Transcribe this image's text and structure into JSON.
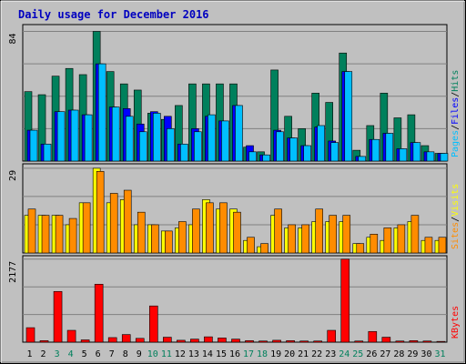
{
  "chart_data": [
    {
      "type": "bar",
      "title": "Daily usage for December 2016",
      "ylabel_parts": [
        "Pages",
        "/",
        "Files",
        "/",
        "Hits"
      ],
      "ymax_label": "84",
      "categories": [
        "1",
        "2",
        "3",
        "4",
        "5",
        "6",
        "7",
        "8",
        "9",
        "10",
        "11",
        "12",
        "13",
        "14",
        "15",
        "16",
        "17",
        "18",
        "19",
        "20",
        "21",
        "22",
        "23",
        "24",
        "25",
        "26",
        "27",
        "28",
        "29",
        "30",
        "31"
      ],
      "series": [
        {
          "name": "Hits",
          "color": "#00805c",
          "values": [
            45,
            43,
            55,
            60,
            56,
            84,
            58,
            50,
            46,
            31,
            27,
            36,
            50,
            50,
            50,
            50,
            9,
            6,
            59,
            29,
            21,
            44,
            38,
            70,
            7,
            23,
            44,
            28,
            30,
            10,
            5
          ]
        },
        {
          "name": "Files",
          "color": "#0000ff",
          "values": [
            20,
            11,
            32,
            33,
            30,
            63,
            35,
            34,
            24,
            32,
            29,
            11,
            21,
            29,
            26,
            36,
            10,
            4,
            20,
            15,
            10,
            22,
            13,
            58,
            3,
            14,
            18,
            8,
            12,
            6,
            5
          ]
        },
        {
          "name": "Pages",
          "color": "#00bfff",
          "values": [
            20,
            11,
            32,
            33,
            30,
            63,
            35,
            29,
            19,
            31,
            21,
            11,
            19,
            30,
            26,
            36,
            6,
            4,
            19,
            15,
            10,
            23,
            12,
            58,
            3,
            14,
            18,
            8,
            12,
            6,
            5
          ]
        }
      ]
    },
    {
      "type": "bar",
      "ylabel_parts": [
        "Sites",
        "/",
        "Visits"
      ],
      "ymax_label": "29",
      "categories": [
        "1",
        "2",
        "3",
        "4",
        "5",
        "6",
        "7",
        "8",
        "9",
        "10",
        "11",
        "12",
        "13",
        "14",
        "15",
        "16",
        "17",
        "18",
        "19",
        "20",
        "21",
        "22",
        "23",
        "24",
        "25",
        "26",
        "27",
        "28",
        "29",
        "30",
        "31"
      ],
      "series": [
        {
          "name": "Visits",
          "color": "#ffff00",
          "values": [
            12,
            12,
            12,
            9,
            16,
            27,
            16,
            17,
            9,
            9,
            7,
            8,
            9,
            17,
            14,
            14,
            4,
            2,
            12,
            8,
            8,
            10,
            10,
            10,
            3,
            5,
            4,
            8,
            10,
            4,
            4
          ]
        },
        {
          "name": "Sites",
          "color": "#ff8c00",
          "values": [
            14,
            12,
            12,
            11,
            16,
            26,
            19,
            20,
            13,
            9,
            7,
            10,
            14,
            16,
            16,
            13,
            5,
            3,
            14,
            9,
            9,
            14,
            12,
            12,
            3,
            6,
            8,
            9,
            12,
            5,
            5
          ]
        }
      ]
    },
    {
      "type": "bar",
      "ylabel_parts": [
        "KBytes"
      ],
      "ymax_label": "2177",
      "categories": [
        "1",
        "2",
        "3",
        "4",
        "5",
        "6",
        "7",
        "8",
        "9",
        "10",
        "11",
        "12",
        "13",
        "14",
        "15",
        "16",
        "17",
        "18",
        "19",
        "20",
        "21",
        "22",
        "23",
        "24",
        "25",
        "26",
        "27",
        "28",
        "29",
        "30",
        "31"
      ],
      "weekend_days": [
        "3",
        "4",
        "10",
        "11",
        "17",
        "18",
        "24",
        "25",
        "31"
      ],
      "series": [
        {
          "name": "KBytes",
          "color": "#ff0000",
          "values": [
            380,
            40,
            1330,
            310,
            60,
            1520,
            120,
            200,
            100,
            950,
            130,
            50,
            80,
            140,
            110,
            80,
            40,
            30,
            50,
            40,
            30,
            30,
            310,
            2177,
            30,
            280,
            130,
            30,
            40,
            30,
            20
          ]
        }
      ]
    }
  ],
  "colors": {
    "background": "#c0c0c0",
    "title": "#0000c0",
    "hits": "#00805c",
    "files": "#0000ff",
    "pages": "#00bfff",
    "visits": "#ffff00",
    "sites": "#ff8c00",
    "kbytes": "#ff0000",
    "weekend_label": "#00805c",
    "weekday_label": "#000000"
  }
}
